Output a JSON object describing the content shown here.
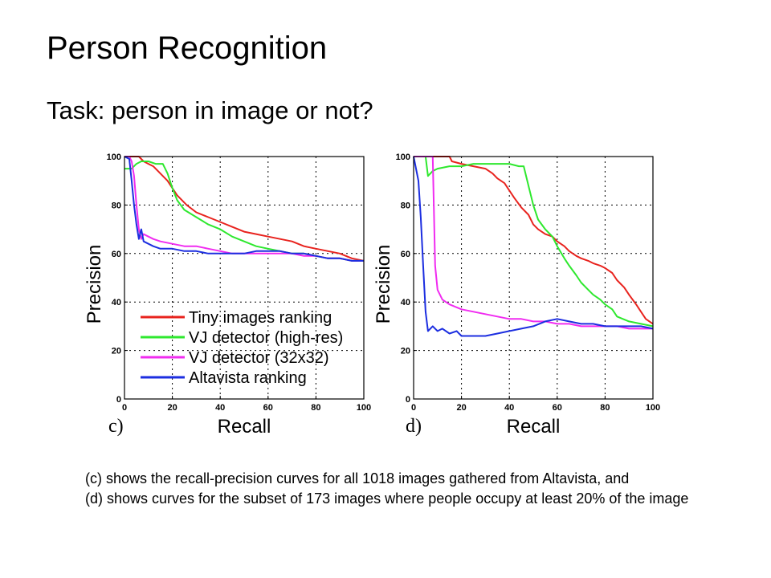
{
  "slide": {
    "title": "Person Recognition",
    "subtitle": "Task: person in image or not?",
    "caption_lines": [
      "(c) shows the recall-precision curves for all 1018 images gathered from Altavista, and",
      "(d) shows curves for the subset of 173 images where people occupy at least 20% of the image"
    ]
  },
  "chart_data": [
    {
      "type": "line",
      "panel_label": "c)",
      "xlabel": "Recall",
      "ylabel": "Precision",
      "xlim": [
        0,
        100
      ],
      "ylim": [
        0,
        100
      ],
      "xticks": [
        0,
        20,
        40,
        60,
        80,
        100
      ],
      "yticks": [
        0,
        20,
        40,
        60,
        80,
        100
      ],
      "grid": true,
      "legend_position": "bottom-left",
      "series": [
        {
          "name": "Tiny images ranking",
          "color": "#e8231e",
          "x": [
            0,
            4,
            6,
            8,
            10,
            12,
            14,
            16,
            18,
            20,
            22,
            26,
            30,
            35,
            40,
            45,
            50,
            55,
            60,
            65,
            70,
            75,
            80,
            85,
            90,
            95,
            100
          ],
          "y": [
            100,
            100,
            100,
            98,
            97,
            96,
            94,
            92,
            90,
            87,
            84,
            80,
            77,
            75,
            73,
            71,
            69,
            68,
            67,
            66,
            65,
            63,
            62,
            61,
            60,
            58,
            57
          ]
        },
        {
          "name": "VJ detector (high-res)",
          "color": "#2ee82e",
          "x": [
            0,
            3,
            5,
            7,
            10,
            13,
            16,
            18,
            20,
            22,
            25,
            30,
            35,
            40,
            45,
            50,
            55,
            60,
            65,
            70,
            75,
            80,
            85,
            90,
            95,
            100
          ],
          "y": [
            95,
            95,
            97,
            98,
            98,
            97,
            97,
            93,
            87,
            82,
            78,
            75,
            72,
            70,
            67,
            65,
            63,
            62,
            61,
            60,
            60,
            59,
            58,
            58,
            57,
            57
          ]
        },
        {
          "name": "VJ detector (32x32)",
          "color": "#f02cf0",
          "x": [
            0,
            2,
            3,
            4,
            5,
            6,
            7,
            8,
            10,
            12,
            15,
            20,
            25,
            30,
            35,
            40,
            45,
            50,
            55,
            60,
            65,
            70,
            75,
            80,
            85,
            90,
            95,
            100
          ],
          "y": [
            100,
            100,
            98,
            92,
            80,
            70,
            66,
            68,
            67,
            66,
            65,
            64,
            63,
            63,
            62,
            61,
            60,
            60,
            60,
            60,
            60,
            60,
            59,
            59,
            58,
            58,
            57,
            57
          ]
        },
        {
          "name": "Altavista ranking",
          "color": "#1c2ee0",
          "x": [
            0,
            2,
            3,
            4,
            5,
            6,
            7,
            8,
            10,
            12,
            15,
            20,
            25,
            30,
            35,
            40,
            45,
            50,
            55,
            60,
            65,
            70,
            75,
            80,
            85,
            90,
            95,
            100
          ],
          "y": [
            100,
            99,
            90,
            80,
            72,
            66,
            70,
            65,
            64,
            63,
            62,
            62,
            61,
            61,
            60,
            60,
            60,
            60,
            61,
            61,
            61,
            60,
            60,
            59,
            58,
            58,
            57,
            57
          ]
        }
      ]
    },
    {
      "type": "line",
      "panel_label": "d)",
      "xlabel": "Recall",
      "ylabel": "Precision",
      "xlim": [
        0,
        100
      ],
      "ylim": [
        0,
        100
      ],
      "xticks": [
        0,
        20,
        40,
        60,
        80,
        100
      ],
      "yticks": [
        0,
        20,
        40,
        60,
        80,
        100
      ],
      "grid": true,
      "series": [
        {
          "name": "Tiny images ranking",
          "color": "#e8231e",
          "x": [
            0,
            5,
            10,
            15,
            16,
            20,
            25,
            30,
            33,
            35,
            38,
            40,
            42,
            45,
            48,
            50,
            52,
            55,
            58,
            60,
            63,
            65,
            68,
            70,
            73,
            75,
            78,
            80,
            83,
            85,
            88,
            90,
            93,
            95,
            97,
            100
          ],
          "y": [
            100,
            100,
            100,
            100,
            98,
            97,
            96,
            95,
            93,
            91,
            89,
            86,
            83,
            79,
            76,
            72,
            70,
            68,
            67,
            65,
            63,
            61,
            59,
            58,
            57,
            56,
            55,
            54,
            52,
            49,
            46,
            43,
            39,
            36,
            33,
            31
          ]
        },
        {
          "name": "VJ detector (high-res)",
          "color": "#2ee82e",
          "x": [
            0,
            5,
            6,
            8,
            10,
            15,
            20,
            25,
            30,
            35,
            40,
            44,
            45,
            46,
            48,
            50,
            52,
            55,
            58,
            60,
            63,
            65,
            68,
            70,
            73,
            75,
            78,
            80,
            83,
            85,
            90,
            95,
            100
          ],
          "y": [
            100,
            100,
            92,
            94,
            95,
            96,
            96,
            97,
            97,
            97,
            97,
            96,
            96,
            96,
            88,
            80,
            74,
            70,
            67,
            63,
            58,
            55,
            51,
            48,
            45,
            43,
            41,
            39,
            37,
            34,
            32,
            31,
            30
          ]
        },
        {
          "name": "VJ detector (32x32)",
          "color": "#f02cf0",
          "x": [
            0,
            5,
            7,
            8,
            9,
            10,
            12,
            15,
            20,
            25,
            30,
            35,
            40,
            45,
            50,
            55,
            60,
            65,
            70,
            75,
            80,
            85,
            90,
            95,
            100
          ],
          "y": [
            100,
            100,
            100,
            100,
            55,
            45,
            41,
            39,
            37,
            36,
            35,
            34,
            33,
            33,
            32,
            32,
            31,
            31,
            30,
            30,
            30,
            30,
            29,
            29,
            29
          ]
        },
        {
          "name": "Altavista ranking",
          "color": "#1c2ee0",
          "x": [
            0,
            2,
            3,
            4,
            5,
            6,
            8,
            10,
            12,
            15,
            18,
            20,
            25,
            30,
            35,
            40,
            45,
            50,
            55,
            60,
            65,
            70,
            75,
            80,
            85,
            90,
            95,
            100
          ],
          "y": [
            100,
            90,
            75,
            55,
            36,
            28,
            30,
            28,
            29,
            27,
            28,
            26,
            26,
            26,
            27,
            28,
            29,
            30,
            32,
            33,
            32,
            31,
            31,
            30,
            30,
            30,
            30,
            29
          ]
        }
      ]
    }
  ]
}
